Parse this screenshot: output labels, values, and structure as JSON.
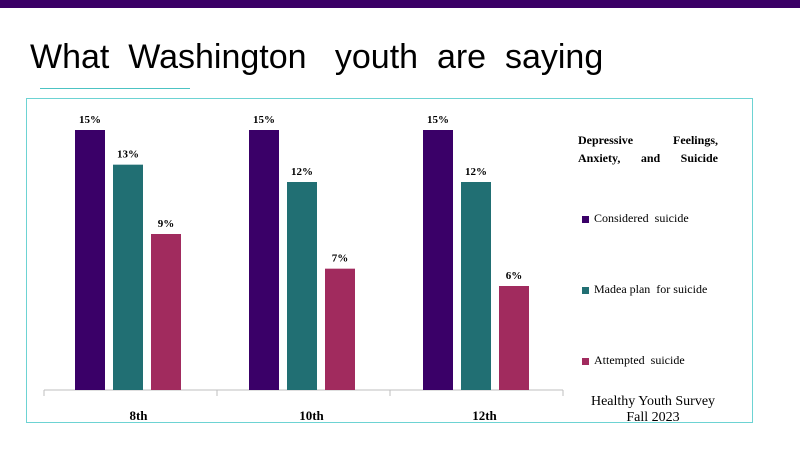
{
  "header": {
    "title": "What  Washington   youth  are  saying"
  },
  "colors": {
    "top_bar": "#3b0066",
    "frame_border": "#6dd3d3",
    "considered": "#3a0068",
    "plan": "#216f73",
    "attempted": "#a12b5e"
  },
  "chart_data": {
    "type": "bar",
    "categories": [
      "8th",
      "10th",
      "12th"
    ],
    "series": [
      {
        "name": "Considered  suicide",
        "values": [
          15,
          15,
          15
        ],
        "labels": [
          "15%",
          "15%",
          "15%"
        ]
      },
      {
        "name": "Madea plan  for suicide",
        "values": [
          13,
          12,
          12
        ],
        "labels": [
          "13%",
          "12%",
          "12%"
        ]
      },
      {
        "name": "Attempted  suicide",
        "values": [
          9,
          7,
          6
        ],
        "labels": [
          "9%",
          "7%",
          "6%"
        ]
      }
    ],
    "legend_title": "Depressive  Feelings, Anxiety,  and  Suicide",
    "legend_position": "right",
    "ylim": [
      0,
      15
    ],
    "grid": false
  },
  "source": {
    "line1": "Healthy Youth Survey",
    "line2": "Fall 2023"
  }
}
